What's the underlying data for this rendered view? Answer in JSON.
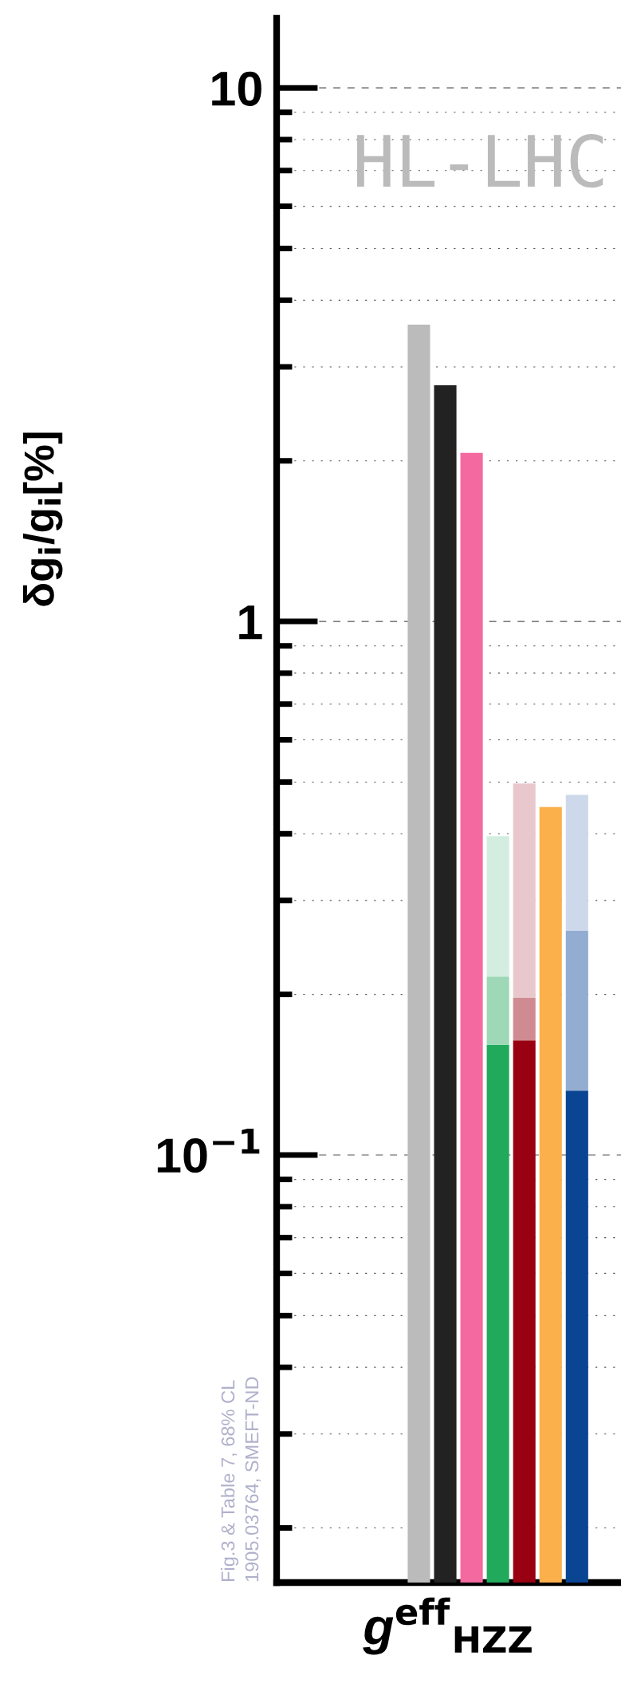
{
  "chart_data": {
    "type": "bar",
    "stacked": true,
    "log": "y",
    "categories": [
      null,
      null,
      null,
      null,
      null,
      null,
      null
    ],
    "xlabel": "g$^{eff}$$_{HZZ}$",
    "ylabel": "δg$_{i}$/g$_{i}$[%]",
    "series": [
      {
        "colors": [
          "#bbbbbb",
          "#222222",
          "#f46aa0",
          "#22aa5c",
          "#990011",
          "#fbb04c",
          "#0a4593"
        ],
        "values": [
          3.6,
          2.77,
          2.07,
          0.161,
          0.164,
          0.449,
          0.132
        ]
      },
      {
        "colors": [
          "#bbbbbb",
          "#222222",
          "#f46aa0",
          "#9ed8b6",
          "#cf8b91",
          "#fbb04c",
          "#93acd1"
        ],
        "values": [
          null,
          null,
          null,
          0.055,
          0.033,
          null,
          0.131
        ]
      },
      {
        "colors": [
          "#bbbbbb",
          "#222222",
          "#f46aa0",
          "#d3eee0",
          "#e8c8cc",
          "#fbb04c",
          "#cdd9ea"
        ],
        "values": [
          null,
          null,
          null,
          0.18,
          0.3,
          null,
          0.21
        ]
      }
    ],
    "ylim": [
      0.0158,
      13.5
    ],
    "yticks": [
      {
        "value": 0.1,
        "label": "10$^{−1}$"
      },
      1,
      10
    ],
    "grid": "y",
    "tick_labels": "y",
    "annotations": [
      "HL-LHC",
      "Fig.3 & Table 7, 68% CL",
      "1905.03764, SMEFT-ND"
    ]
  }
}
